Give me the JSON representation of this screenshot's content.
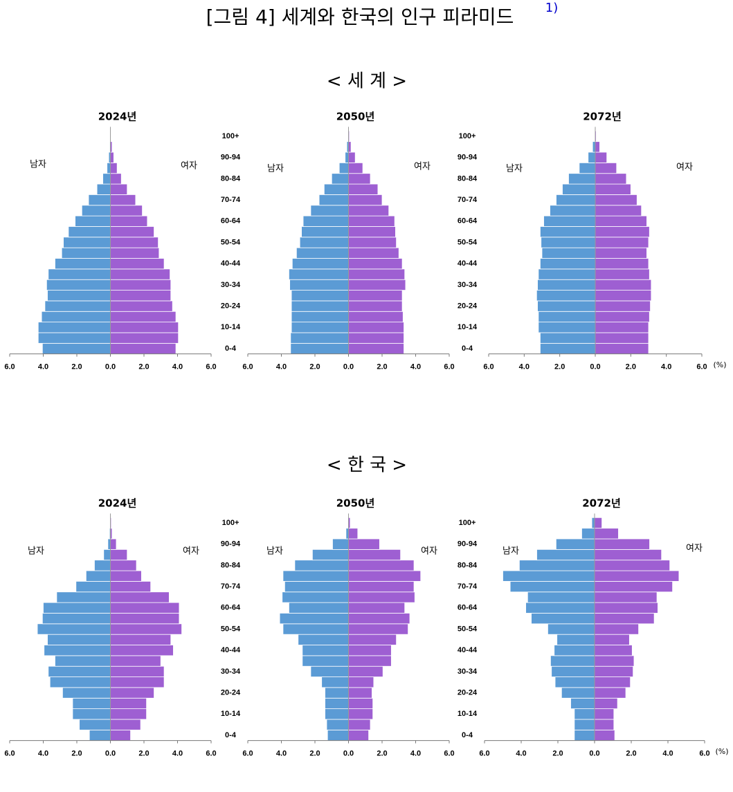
{
  "title": "[그림 4] 세계와 한국의 인구 피라미드",
  "footnote_mark": "1)",
  "section_titles": [
    "< 세 계 >",
    "< 한 국 >"
  ],
  "age_groups": [
    "0-4",
    null,
    "10-14",
    null,
    "20-24",
    null,
    "30-34",
    null,
    "40-44",
    null,
    "50-54",
    null,
    "60-64",
    null,
    "70-74",
    null,
    "80-84",
    null,
    "90-94",
    null,
    "100+"
  ],
  "chart_data": [
    {
      "type": "pyramid",
      "title": "2024년",
      "xlim": [
        -6,
        6
      ],
      "xticks": [
        {
          "value": -6,
          "label": "6.0"
        },
        {
          "value": -4,
          "label": "4.0"
        },
        {
          "value": -2,
          "label": "2.0"
        },
        {
          "value": 0,
          "label": "0.0"
        },
        {
          "value": 2,
          "label": "2.0"
        },
        {
          "value": 4,
          "label": "4.0"
        },
        {
          "value": 6,
          "label": "6.0"
        }
      ],
      "series": [
        {
          "name": "남자",
          "color": "#5b9bd5",
          "values": [
            4.05,
            4.3,
            4.3,
            4.1,
            3.9,
            3.75,
            3.8,
            3.7,
            3.3,
            2.9,
            2.8,
            2.5,
            2.1,
            1.7,
            1.3,
            0.8,
            0.45,
            0.2,
            0.1,
            0.04,
            0.01
          ]
        },
        {
          "name": "여자",
          "color": "#9e5fd2",
          "values": [
            3.9,
            4.05,
            4.05,
            3.9,
            3.7,
            3.6,
            3.6,
            3.55,
            3.2,
            2.9,
            2.85,
            2.6,
            2.2,
            1.9,
            1.5,
            1.0,
            0.65,
            0.4,
            0.2,
            0.1,
            0.03
          ]
        }
      ]
    },
    {
      "type": "pyramid",
      "title": "2050년",
      "xlim": [
        -6,
        6
      ],
      "xticks": [
        {
          "value": -6,
          "label": "6.0"
        },
        {
          "value": -4,
          "label": "4.0"
        },
        {
          "value": -2,
          "label": "2.0"
        },
        {
          "value": 0,
          "label": "0.0"
        },
        {
          "value": 2,
          "label": "2.0"
        },
        {
          "value": 4,
          "label": "4.0"
        },
        {
          "value": 6,
          "label": "6.0"
        }
      ],
      "series": [
        {
          "name": "남자",
          "color": "#5b9bd5",
          "values": [
            3.45,
            3.45,
            3.4,
            3.4,
            3.4,
            3.4,
            3.5,
            3.55,
            3.35,
            3.1,
            2.9,
            2.8,
            2.7,
            2.25,
            1.75,
            1.45,
            1.0,
            0.55,
            0.2,
            0.1,
            0.03
          ]
        },
        {
          "name": "여자",
          "color": "#9e5fd2",
          "values": [
            3.3,
            3.3,
            3.3,
            3.25,
            3.2,
            3.2,
            3.4,
            3.35,
            3.2,
            3.0,
            2.85,
            2.8,
            2.75,
            2.4,
            2.0,
            1.75,
            1.3,
            0.85,
            0.4,
            0.15,
            0.05
          ]
        }
      ]
    },
    {
      "type": "pyramid",
      "title": "2072년",
      "xlim": [
        -6,
        6
      ],
      "xlabel": "(%)",
      "xticks": [
        {
          "value": -6,
          "label": "6.0"
        },
        {
          "value": -4,
          "label": "4.0"
        },
        {
          "value": -2,
          "label": "2.0"
        },
        {
          "value": 0,
          "label": "0.0"
        },
        {
          "value": 2,
          "label": "2.0"
        },
        {
          "value": 4,
          "label": "4.0"
        },
        {
          "value": 6,
          "label": "6.0"
        }
      ],
      "series": [
        {
          "name": "남자",
          "color": "#5b9bd5",
          "values": [
            3.1,
            3.1,
            3.2,
            3.2,
            3.25,
            3.3,
            3.25,
            3.2,
            3.1,
            3.0,
            3.05,
            3.1,
            2.9,
            2.55,
            2.2,
            1.85,
            1.5,
            0.9,
            0.4,
            0.15,
            0.03
          ]
        },
        {
          "name": "여자",
          "color": "#9e5fd2",
          "values": [
            3.0,
            3.0,
            3.0,
            3.05,
            3.1,
            3.15,
            3.15,
            3.05,
            3.0,
            2.9,
            3.0,
            3.05,
            2.9,
            2.6,
            2.35,
            2.0,
            1.75,
            1.2,
            0.65,
            0.25,
            0.05
          ]
        }
      ]
    },
    {
      "type": "pyramid",
      "title": "2024년",
      "xlim": [
        -6,
        6
      ],
      "xticks": [
        {
          "value": -6,
          "label": "6.0"
        },
        {
          "value": -4,
          "label": "4.0"
        },
        {
          "value": -2,
          "label": "2.0"
        },
        {
          "value": 0,
          "label": "0.0"
        },
        {
          "value": 2,
          "label": "2.0"
        },
        {
          "value": 4,
          "label": "4.0"
        },
        {
          "value": 6,
          "label": "6.0"
        }
      ],
      "series": [
        {
          "name": "남자",
          "color": "#5b9bd5",
          "values": [
            1.25,
            1.85,
            2.25,
            2.25,
            2.85,
            3.6,
            3.7,
            3.3,
            3.95,
            3.75,
            4.35,
            4.05,
            4.0,
            3.2,
            2.05,
            1.45,
            0.95,
            0.4,
            0.15,
            0.05,
            0.01
          ]
        },
        {
          "name": "여자",
          "color": "#9e5fd2",
          "values": [
            1.2,
            1.8,
            2.15,
            2.15,
            2.6,
            3.2,
            3.2,
            3.0,
            3.75,
            3.6,
            4.25,
            4.1,
            4.1,
            3.5,
            2.4,
            1.85,
            1.55,
            1.0,
            0.35,
            0.1,
            0.05
          ]
        }
      ]
    },
    {
      "type": "pyramid",
      "title": "2050년",
      "xlim": [
        -6,
        6
      ],
      "xticks": [
        {
          "value": -6,
          "label": "6.0"
        },
        {
          "value": -4,
          "label": "4.0"
        },
        {
          "value": -2,
          "label": "2.0"
        },
        {
          "value": 0,
          "label": "0.0"
        },
        {
          "value": 2,
          "label": "2.0"
        },
        {
          "value": 4,
          "label": "4.0"
        },
        {
          "value": 6,
          "label": "6.0"
        }
      ],
      "series": [
        {
          "name": "남자",
          "color": "#5b9bd5",
          "values": [
            1.25,
            1.3,
            1.4,
            1.4,
            1.4,
            1.6,
            2.25,
            2.75,
            2.75,
            3.0,
            3.9,
            4.1,
            3.55,
            3.95,
            3.8,
            3.9,
            3.2,
            2.15,
            0.95,
            0.15,
            0.03
          ]
        },
        {
          "name": "여자",
          "color": "#9e5fd2",
          "values": [
            1.2,
            1.3,
            1.45,
            1.45,
            1.4,
            1.5,
            2.05,
            2.55,
            2.55,
            2.85,
            3.55,
            3.65,
            3.35,
            3.95,
            3.9,
            4.3,
            3.9,
            3.1,
            1.85,
            0.55,
            0.1
          ]
        }
      ]
    },
    {
      "type": "pyramid",
      "title": "2072년",
      "xlim": [
        -6,
        6
      ],
      "xlabel": "(%)",
      "xticks": [
        {
          "value": -6,
          "label": "6.0"
        },
        {
          "value": -4,
          "label": "4.0"
        },
        {
          "value": -2,
          "label": "2.0"
        },
        {
          "value": 0,
          "label": "0.0"
        },
        {
          "value": 2,
          "label": "2.0"
        },
        {
          "value": 4,
          "label": "4.0"
        },
        {
          "value": 6,
          "label": "6.0"
        }
      ],
      "series": [
        {
          "name": "남자",
          "color": "#5b9bd5",
          "values": [
            1.1,
            1.1,
            1.1,
            1.3,
            1.8,
            2.15,
            2.35,
            2.4,
            2.2,
            2.05,
            2.55,
            3.45,
            3.75,
            3.65,
            4.6,
            5.0,
            4.1,
            3.15,
            2.1,
            0.7,
            0.15
          ]
        },
        {
          "name": "여자",
          "color": "#9e5fd2",
          "values": [
            1.1,
            1.05,
            1.05,
            1.25,
            1.7,
            1.95,
            2.1,
            2.15,
            2.05,
            1.9,
            2.4,
            3.25,
            3.45,
            3.4,
            4.25,
            4.6,
            4.1,
            3.65,
            3.0,
            1.3,
            0.4
          ]
        }
      ]
    }
  ]
}
